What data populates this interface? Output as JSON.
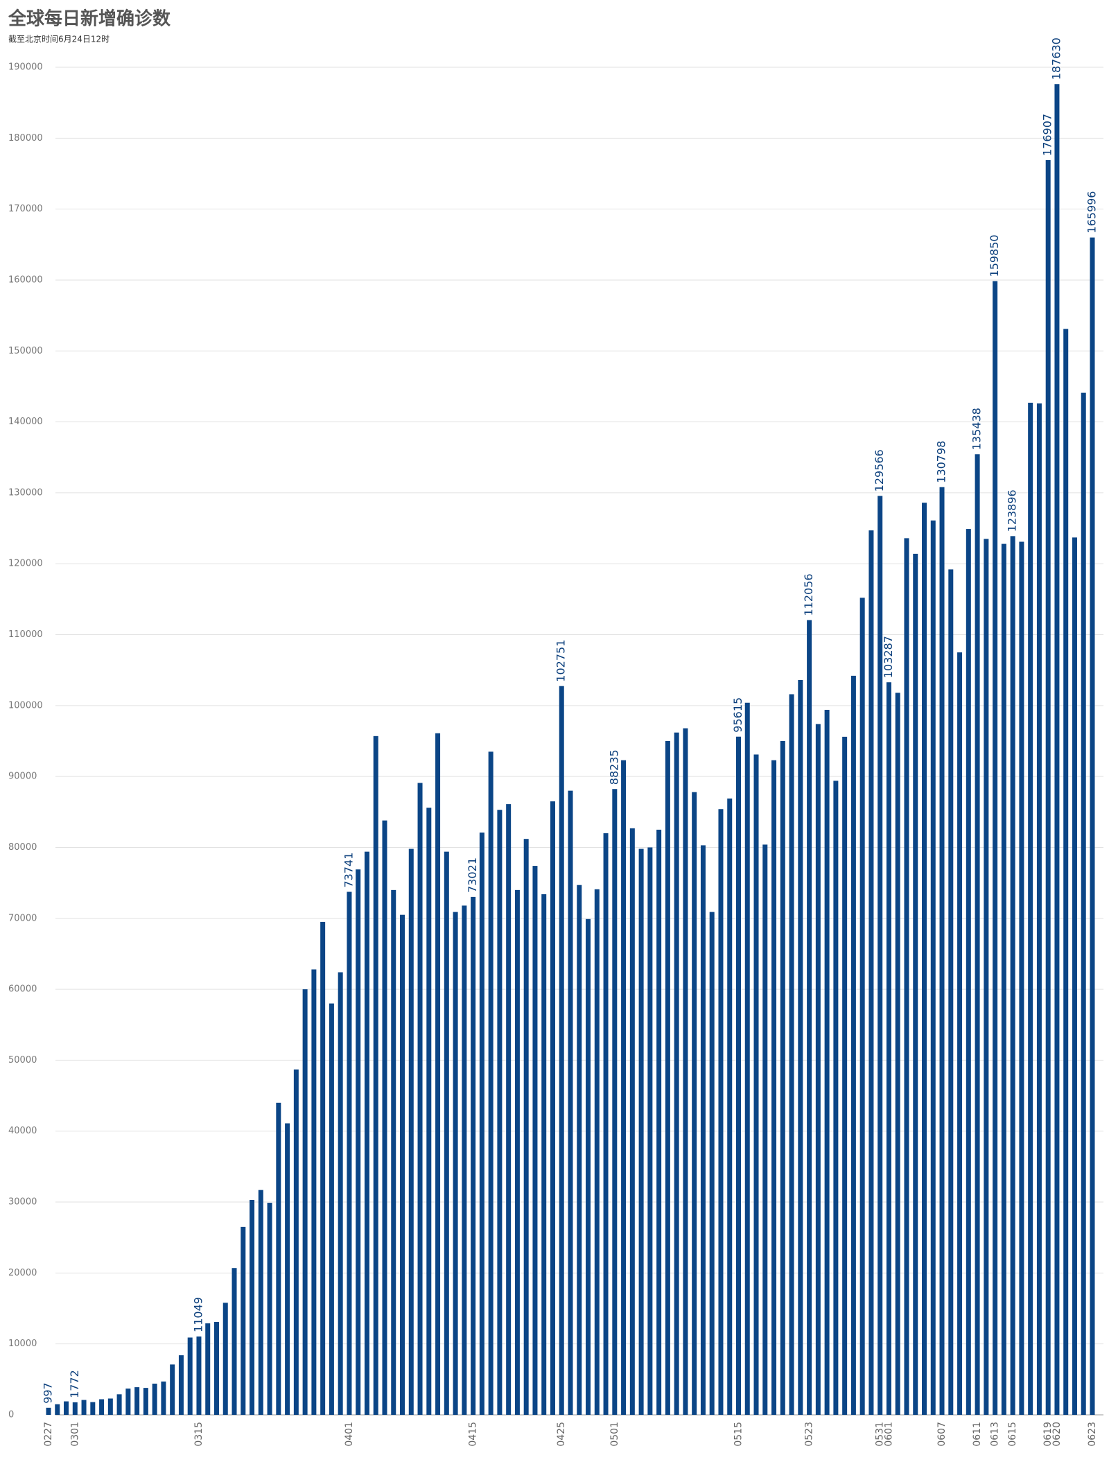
{
  "chart_data": {
    "type": "bar",
    "title": "全球每日新增确诊数",
    "subtitle": "截至北京时间6月24日12时",
    "categories": [
      "0227",
      null,
      null,
      "0301",
      null,
      null,
      null,
      null,
      null,
      null,
      null,
      null,
      null,
      null,
      null,
      null,
      null,
      "0315",
      null,
      null,
      null,
      null,
      null,
      null,
      null,
      null,
      null,
      null,
      null,
      null,
      null,
      null,
      null,
      null,
      "0401",
      null,
      null,
      null,
      null,
      null,
      null,
      null,
      null,
      null,
      null,
      null,
      null,
      null,
      "0415",
      null,
      null,
      null,
      null,
      null,
      null,
      null,
      null,
      null,
      "0425",
      null,
      null,
      null,
      null,
      null,
      "0501",
      null,
      null,
      null,
      null,
      null,
      null,
      null,
      null,
      null,
      null,
      null,
      null,
      null,
      "0515",
      null,
      null,
      null,
      null,
      null,
      null,
      null,
      "0523",
      null,
      null,
      null,
      null,
      null,
      null,
      null,
      "0531",
      "0601",
      null,
      null,
      null,
      null,
      null,
      "0607",
      null,
      null,
      null,
      "0611",
      null,
      "0613",
      null,
      "0615",
      null,
      null,
      null,
      "0619",
      "0620",
      null,
      null,
      null,
      "0623"
    ],
    "values": [
      997,
      1500,
      1900,
      1772,
      2100,
      1800,
      2200,
      2300,
      2900,
      3700,
      3900,
      3800,
      4400,
      4700,
      7100,
      8400,
      10900,
      11049,
      12900,
      13100,
      15800,
      20700,
      26500,
      30300,
      31700,
      29900,
      44000,
      41100,
      48700,
      60000,
      62800,
      69500,
      58000,
      62400,
      73741,
      76900,
      79400,
      95700,
      83800,
      74000,
      70500,
      79800,
      89100,
      85600,
      96100,
      79400,
      70900,
      71800,
      73021,
      82100,
      93500,
      85300,
      86100,
      74000,
      81200,
      77400,
      73400,
      86500,
      102751,
      88000,
      74700,
      69900,
      74100,
      82000,
      88235,
      92300,
      82700,
      79800,
      80000,
      82500,
      95000,
      96200,
      96800,
      87800,
      80300,
      70900,
      85400,
      86900,
      95615,
      100400,
      93100,
      80400,
      92300,
      95000,
      101600,
      103600,
      112056,
      97400,
      99400,
      89400,
      95600,
      104200,
      115200,
      124700,
      129566,
      103287,
      101800,
      123600,
      121400,
      128600,
      126100,
      130798,
      119200,
      107500,
      124900,
      135438,
      123500,
      159850,
      122800,
      123896,
      123100,
      142700,
      142600,
      176907,
      187630,
      153100,
      123700,
      144100,
      165996
    ],
    "value_labels": [
      "997",
      null,
      null,
      "1772",
      null,
      null,
      null,
      null,
      null,
      null,
      null,
      null,
      null,
      null,
      null,
      null,
      null,
      "11049",
      null,
      null,
      null,
      null,
      null,
      null,
      null,
      null,
      null,
      null,
      null,
      null,
      null,
      null,
      null,
      null,
      "73741",
      null,
      null,
      null,
      null,
      null,
      null,
      null,
      null,
      null,
      null,
      null,
      null,
      null,
      "73021",
      null,
      null,
      null,
      null,
      null,
      null,
      null,
      null,
      null,
      "102751",
      null,
      null,
      null,
      null,
      null,
      "88235",
      null,
      null,
      null,
      null,
      null,
      null,
      null,
      null,
      null,
      null,
      null,
      null,
      null,
      "95615",
      null,
      null,
      null,
      null,
      null,
      null,
      null,
      "112056",
      null,
      null,
      null,
      null,
      null,
      null,
      null,
      "129566",
      "103287",
      null,
      null,
      null,
      null,
      null,
      "130798",
      null,
      null,
      null,
      "135438",
      null,
      "159850",
      null,
      "123896",
      null,
      null,
      null,
      "176907",
      "187630",
      null,
      null,
      null,
      "165996"
    ],
    "color": "#0b4586",
    "ylim": [
      0,
      190000
    ],
    "yticks": [
      0,
      10000,
      20000,
      30000,
      40000,
      50000,
      60000,
      70000,
      80000,
      90000,
      100000,
      110000,
      120000,
      130000,
      140000,
      150000,
      160000,
      170000,
      180000,
      190000
    ],
    "grid": true
  }
}
